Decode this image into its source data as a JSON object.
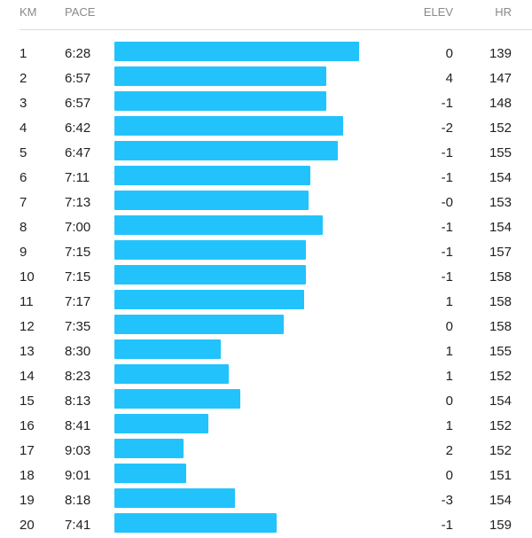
{
  "header": {
    "km": "KM",
    "pace": "PACE",
    "elev": "ELEV",
    "hr": "HR"
  },
  "bar_color": "#22c3fc",
  "splits": [
    {
      "km": "1",
      "pace": "6:28",
      "elev": "0",
      "hr": "139"
    },
    {
      "km": "2",
      "pace": "6:57",
      "elev": "4",
      "hr": "147"
    },
    {
      "km": "3",
      "pace": "6:57",
      "elev": "-1",
      "hr": "148"
    },
    {
      "km": "4",
      "pace": "6:42",
      "elev": "-2",
      "hr": "152"
    },
    {
      "km": "5",
      "pace": "6:47",
      "elev": "-1",
      "hr": "155"
    },
    {
      "km": "6",
      "pace": "7:11",
      "elev": "-1",
      "hr": "154"
    },
    {
      "km": "7",
      "pace": "7:13",
      "elev": "-0",
      "hr": "153"
    },
    {
      "km": "8",
      "pace": "7:00",
      "elev": "-1",
      "hr": "154"
    },
    {
      "km": "9",
      "pace": "7:15",
      "elev": "-1",
      "hr": "157"
    },
    {
      "km": "10",
      "pace": "7:15",
      "elev": "-1",
      "hr": "158"
    },
    {
      "km": "11",
      "pace": "7:17",
      "elev": "1",
      "hr": "158"
    },
    {
      "km": "12",
      "pace": "7:35",
      "elev": "0",
      "hr": "158"
    },
    {
      "km": "13",
      "pace": "8:30",
      "elev": "1",
      "hr": "155"
    },
    {
      "km": "14",
      "pace": "8:23",
      "elev": "1",
      "hr": "152"
    },
    {
      "km": "15",
      "pace": "8:13",
      "elev": "0",
      "hr": "154"
    },
    {
      "km": "16",
      "pace": "8:41",
      "elev": "1",
      "hr": "152"
    },
    {
      "km": "17",
      "pace": "9:03",
      "elev": "2",
      "hr": "152"
    },
    {
      "km": "18",
      "pace": "9:01",
      "elev": "0",
      "hr": "151"
    },
    {
      "km": "19",
      "pace": "8:18",
      "elev": "-3",
      "hr": "154"
    },
    {
      "km": "20",
      "pace": "7:41",
      "elev": "-1",
      "hr": "159"
    }
  ]
}
